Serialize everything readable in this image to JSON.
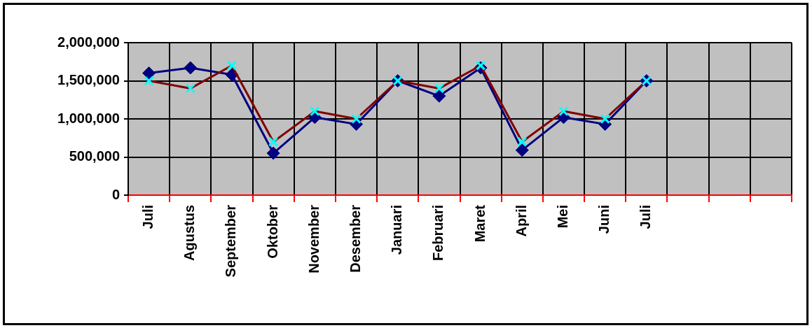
{
  "chart_data": {
    "type": "line",
    "categories": [
      "Juli",
      "Agustus",
      "September",
      "Oktober",
      "November",
      "Desember",
      "Januari",
      "Februari",
      "Maret",
      "April",
      "Mei",
      "Juni",
      "Juli",
      null,
      null,
      null
    ],
    "series": [
      {
        "color": "#000080",
        "marker": "diamond",
        "values": [
          1600000,
          1670000,
          1580000,
          550000,
          1020000,
          930000,
          1500000,
          1300000,
          1670000,
          590000,
          1020000,
          930000,
          1500000,
          null,
          null,
          null
        ]
      },
      {
        "color": "#800000",
        "marker": "cross",
        "values": [
          1500000,
          1400000,
          1700000,
          700000,
          1100000,
          1000000,
          1500000,
          1400000,
          1700000,
          700000,
          1100000,
          1000000,
          1500000,
          null,
          null,
          null
        ]
      }
    ],
    "ylim": [
      0,
      2000000
    ],
    "yticks": [
      0,
      {
        "value": 500000,
        "label": "500,000"
      },
      {
        "value": 1000000,
        "label": "1,000,000"
      },
      {
        "value": 1500000,
        "label": "1,500,000"
      },
      {
        "value": 2000000,
        "label": "2,000,000"
      }
    ],
    "grid": true,
    "legend": false
  }
}
